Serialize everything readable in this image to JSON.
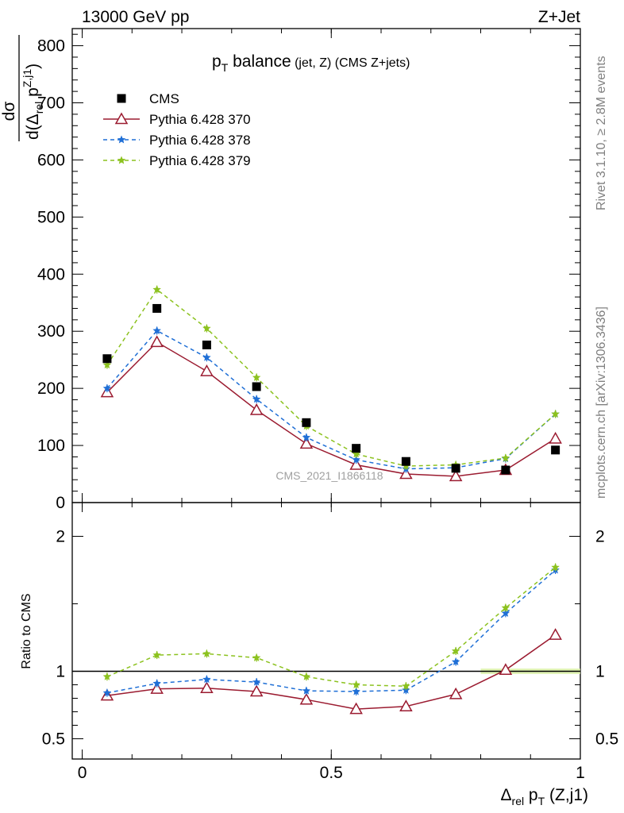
{
  "header": {
    "left": "13000 GeV pp",
    "right": "Z+Jet"
  },
  "side_text": {
    "rivet": "Rivet 3.1.10, ≥ 2.8M events",
    "mcplots": "mcplots.cern.ch [arXiv:1306.3436]"
  },
  "watermark": "CMS_2021_I1866118",
  "chart_data": {
    "type": "line",
    "title": {
      "main": "p",
      "main_sub": "T",
      "main_rest": " balance",
      "small": " (jet, Z) (CMS Z+jets)"
    },
    "ylabel_top": {
      "numerator": "dσ",
      "denominator_d": "d(Δ",
      "denominator_sub": "rel",
      "denominator_p": " p",
      "denominator_sup": "Z,j1",
      "denominator_close": ")"
    },
    "ylabel_bottom": "Ratio to CMS",
    "xlabel": {
      "delta": "Δ",
      "sub1": "rel",
      "p": " p",
      "sub2": "T",
      "rest": " (Z,j1)"
    },
    "x": [
      0.05,
      0.15,
      0.25,
      0.35,
      0.45,
      0.55,
      0.65,
      0.75,
      0.85,
      0.95
    ],
    "xlim": [
      -0.02,
      1.0
    ],
    "ylim_top": [
      0,
      830
    ],
    "ylim_ratio": [
      0.35,
      2.25
    ],
    "xticks": [
      {
        "v": 0,
        "label": "0"
      },
      {
        "v": 0.5,
        "label": "0.5"
      },
      {
        "v": 1,
        "label": "1"
      }
    ],
    "yticks_top": [
      {
        "v": 0,
        "label": "0"
      },
      {
        "v": 100,
        "label": "100"
      },
      {
        "v": 200,
        "label": "200"
      },
      {
        "v": 300,
        "label": "300"
      },
      {
        "v": 400,
        "label": "400"
      },
      {
        "v": 500,
        "label": "500"
      },
      {
        "v": 600,
        "label": "600"
      },
      {
        "v": 700,
        "label": "700"
      },
      {
        "v": 800,
        "label": "800"
      }
    ],
    "yticks_ratio": [
      {
        "v": 0.5,
        "label": "0.5"
      },
      {
        "v": 1,
        "label": "1"
      },
      {
        "v": 2,
        "label": "2"
      }
    ],
    "legend_position": "top-left",
    "series": [
      {
        "name": "CMS",
        "kind": "data",
        "color": "#000000",
        "marker": "square",
        "values": [
          252,
          340,
          276,
          203,
          140,
          95,
          72,
          60,
          57,
          92
        ],
        "ratio": [
          1,
          1,
          1,
          1,
          1,
          1,
          1,
          1,
          1,
          1
        ]
      },
      {
        "name": "Pythia 6.428 370",
        "kind": "mc",
        "color": "#9b1b30",
        "marker": "triangle-open",
        "dash": "solid",
        "values": [
          193,
          281,
          230,
          162,
          103,
          66,
          50,
          46,
          57,
          112
        ],
        "ratio": [
          0.82,
          0.87,
          0.875,
          0.85,
          0.79,
          0.72,
          0.74,
          0.83,
          1.01,
          1.27
        ]
      },
      {
        "name": "Pythia 6.428 378",
        "kind": "mc",
        "color": "#1f6fd6",
        "marker": "star",
        "dash": "dashed",
        "values": [
          200,
          301,
          254,
          181,
          114,
          75,
          59,
          61,
          77,
          155
        ],
        "ratio": [
          0.84,
          0.91,
          0.94,
          0.92,
          0.855,
          0.85,
          0.86,
          1.07,
          1.43,
          1.75
        ]
      },
      {
        "name": "Pythia 6.428 379",
        "kind": "mc",
        "color": "#8cc21f",
        "marker": "star",
        "dash": "dashed",
        "values": [
          241,
          373,
          305,
          219,
          134,
          85,
          64,
          66,
          78,
          155
        ],
        "ratio": [
          0.96,
          1.12,
          1.13,
          1.1,
          0.96,
          0.9,
          0.89,
          1.15,
          1.47,
          1.77
        ]
      }
    ]
  }
}
